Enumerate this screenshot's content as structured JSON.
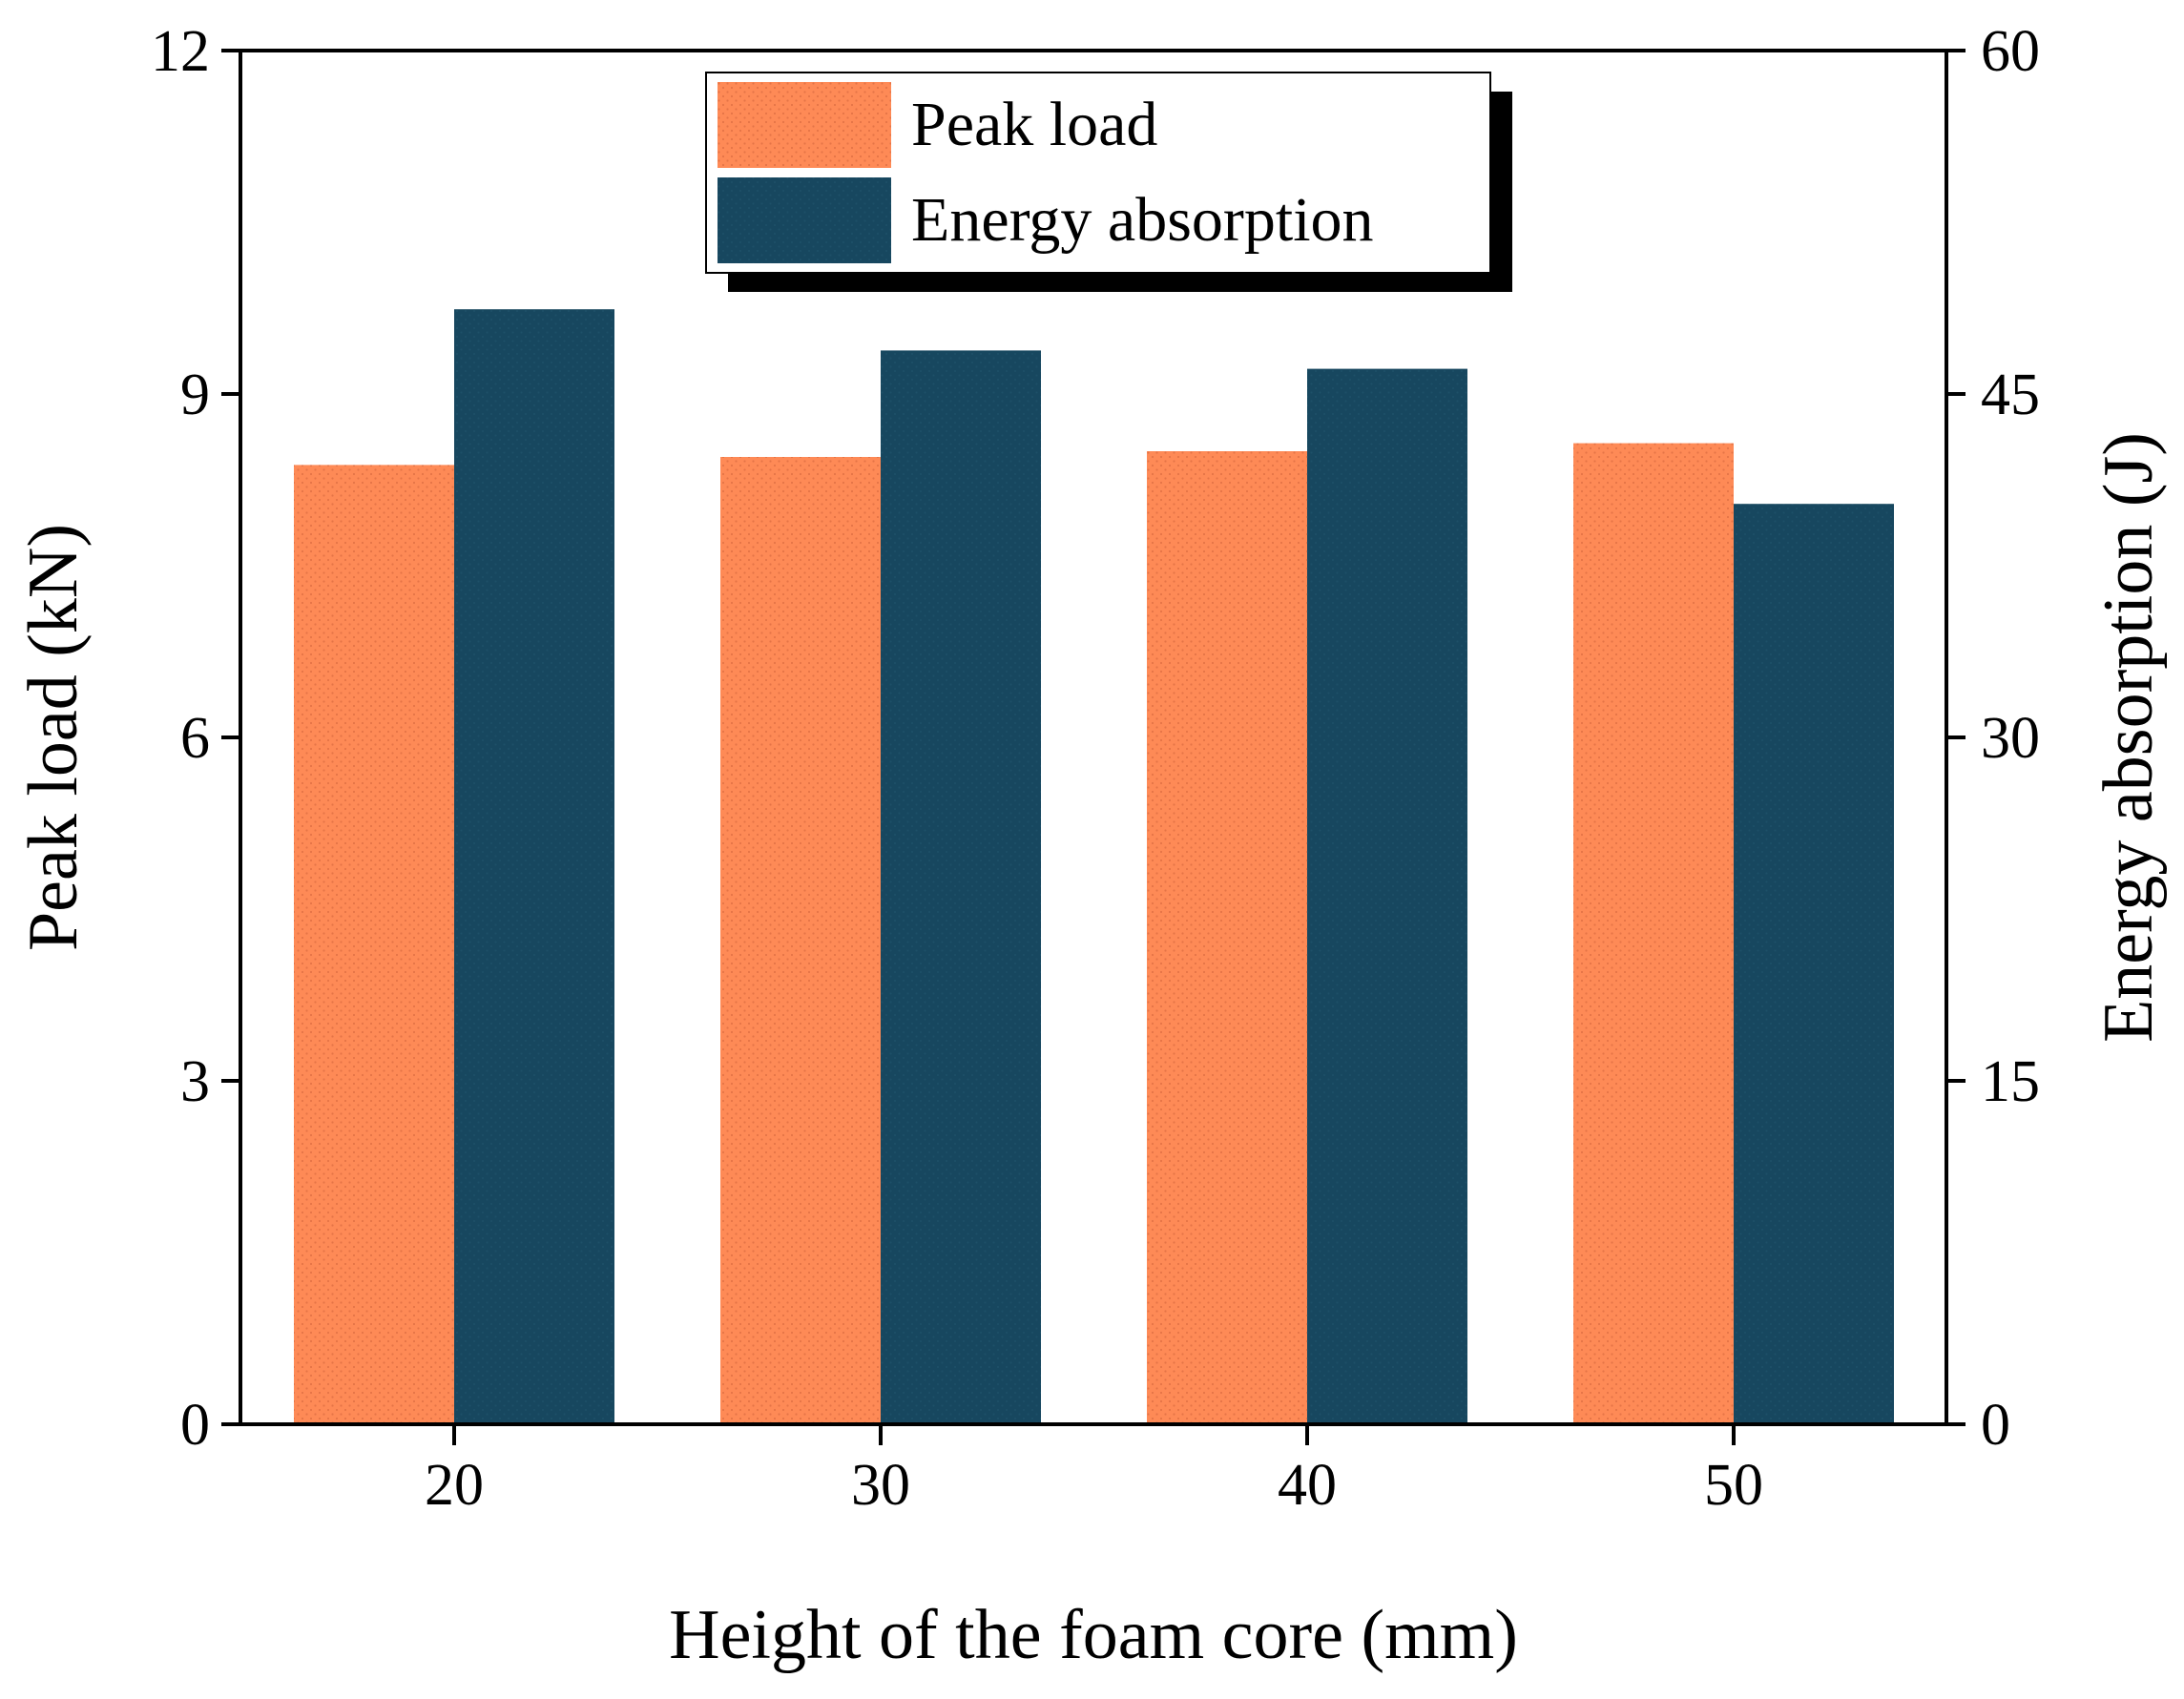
{
  "chart_data": {
    "type": "bar",
    "title": "",
    "xlabel": "Height of the foam core (mm)",
    "ylabel": "Peak load (kN)",
    "y2label": "Energy absorption (J)",
    "categories": [
      "20",
      "30",
      "40",
      "50"
    ],
    "ylim": [
      0,
      12
    ],
    "y2lim": [
      0,
      60
    ],
    "yticks": [
      "0",
      "3",
      "6",
      "9",
      "12"
    ],
    "y2ticks": [
      "0",
      "15",
      "30",
      "45",
      "60"
    ],
    "grid": false,
    "legend_position": "top-center",
    "series": [
      {
        "name": "Peak load",
        "axis": "left",
        "color": "#fe8a56",
        "values": [
          8.38,
          8.45,
          8.5,
          8.57
        ]
      },
      {
        "name": "Energy absorption",
        "axis": "right",
        "color": "#17475f",
        "values": [
          48.7,
          46.9,
          46.1,
          40.2
        ]
      }
    ]
  }
}
